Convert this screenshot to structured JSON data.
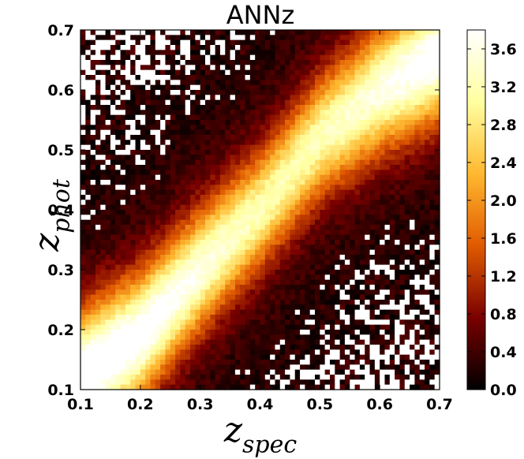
{
  "chart_data": {
    "type": "heatmap",
    "title": "ANNz",
    "xlabel": {
      "main": "z",
      "sub": "spec"
    },
    "ylabel": {
      "main": "z",
      "sub": "phot"
    },
    "xlim": [
      0.1,
      0.7
    ],
    "ylim": [
      0.1,
      0.7
    ],
    "x_ticks": [
      "0.1",
      "0.2",
      "0.3",
      "0.4",
      "0.5",
      "0.6",
      "0.7"
    ],
    "y_ticks": [
      "0.1",
      "0.2",
      "0.3",
      "0.4",
      "0.5",
      "0.6",
      "0.7"
    ],
    "colorbar": {
      "range": [
        0.0,
        3.8
      ],
      "ticks": [
        "0.0",
        "0.4",
        "0.8",
        "1.2",
        "1.6",
        "2.0",
        "2.4",
        "2.8",
        "3.2",
        "3.6"
      ],
      "colormap": "afmhot",
      "stops": [
        "#000000",
        "#7a0000",
        "#e05a00",
        "#ffb830",
        "#ffffa0",
        "#ffffff"
      ]
    },
    "ridge": {
      "description_free_points": [
        {
          "x": 0.1,
          "y": 0.12
        },
        {
          "x": 0.2,
          "y": 0.19
        },
        {
          "x": 0.3,
          "y": 0.3
        },
        {
          "x": 0.4,
          "y": 0.4
        },
        {
          "x": 0.5,
          "y": 0.52
        },
        {
          "x": 0.6,
          "y": 0.6
        },
        {
          "x": 0.7,
          "y": 0.66
        }
      ],
      "peak_value": 3.6
    },
    "grid": false
  }
}
